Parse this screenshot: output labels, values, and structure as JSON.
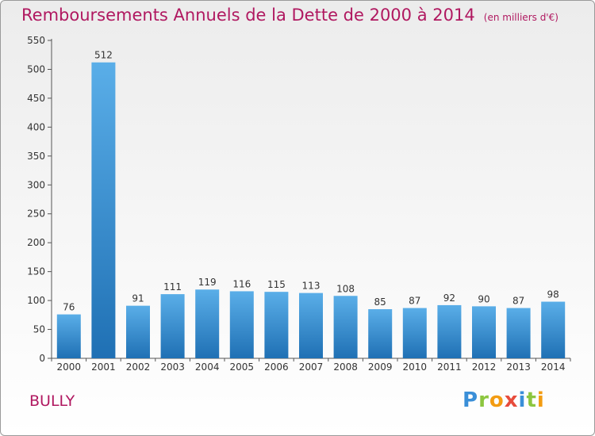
{
  "title": "Remboursements Annuels de la Dette de 2000 à 2014",
  "unit": "(en milliers d'€)",
  "town": "BULLY",
  "logo": {
    "letters": [
      "P",
      "r",
      "o",
      "x",
      "i",
      "t",
      "i"
    ],
    "colors": [
      "#3a8fd8",
      "#8cc63f",
      "#f39c12",
      "#e74c3c",
      "#3a8fd8",
      "#8cc63f",
      "#f39c12"
    ]
  },
  "colors": {
    "bar_top": "#5aaee8",
    "bar_bottom": "#1f70b4",
    "title": "#b01860",
    "axis": "#555555"
  },
  "chart_data": {
    "type": "bar",
    "categories": [
      "2000",
      "2001",
      "2002",
      "2003",
      "2004",
      "2005",
      "2006",
      "2007",
      "2008",
      "2009",
      "2010",
      "2011",
      "2012",
      "2013",
      "2014"
    ],
    "values": [
      76,
      512,
      91,
      111,
      119,
      116,
      115,
      113,
      108,
      85,
      87,
      92,
      90,
      87,
      98
    ],
    "ylim": [
      0,
      550
    ],
    "yticks": [
      0,
      50,
      100,
      150,
      200,
      250,
      300,
      350,
      400,
      450,
      500,
      550
    ],
    "grid": false,
    "legend": "none"
  }
}
